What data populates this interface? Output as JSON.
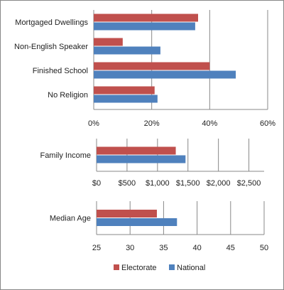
{
  "colors": {
    "electorate": "#c0504d",
    "national": "#4f81bd",
    "grid": "#888888",
    "axis": "#888888",
    "border": "#888888"
  },
  "legend": {
    "items": [
      "Electorate",
      "National"
    ],
    "placement": "bottom-center"
  },
  "chart_data": [
    {
      "type": "bar",
      "orientation": "horizontal",
      "categories": [
        "Mortgaged Dwellings",
        "Non-English Speaker",
        "Finished School",
        "No Religion"
      ],
      "series": [
        {
          "name": "Electorate",
          "values": [
            0.36,
            0.1,
            0.4,
            0.21
          ]
        },
        {
          "name": "National",
          "values": [
            0.35,
            0.23,
            0.49,
            0.22
          ]
        }
      ],
      "xlim": [
        0,
        0.6
      ],
      "ticks": [
        0,
        0.2,
        0.4,
        0.6
      ],
      "tick_labels": [
        "0%",
        "20%",
        "40%",
        "60%"
      ],
      "grid": true
    },
    {
      "type": "bar",
      "orientation": "horizontal",
      "categories": [
        "Family Income"
      ],
      "series": [
        {
          "name": "Electorate",
          "values": [
            1300
          ]
        },
        {
          "name": "National",
          "values": [
            1460
          ]
        }
      ],
      "xlim": [
        0,
        2750
      ],
      "ticks": [
        0,
        500,
        1000,
        1500,
        2000,
        2500
      ],
      "tick_labels": [
        "$0",
        "$500",
        "$1,000",
        "$1,500",
        "$2,000",
        "$2,500"
      ],
      "grid": true
    },
    {
      "type": "bar",
      "orientation": "horizontal",
      "categories": [
        "Median Age"
      ],
      "series": [
        {
          "name": "Electorate",
          "values": [
            34
          ]
        },
        {
          "name": "National",
          "values": [
            37
          ]
        }
      ],
      "xlim": [
        25,
        50
      ],
      "ticks": [
        25,
        30,
        35,
        40,
        45,
        50
      ],
      "tick_labels": [
        "25",
        "30",
        "35",
        "40",
        "45",
        "50"
      ],
      "grid": true
    }
  ]
}
